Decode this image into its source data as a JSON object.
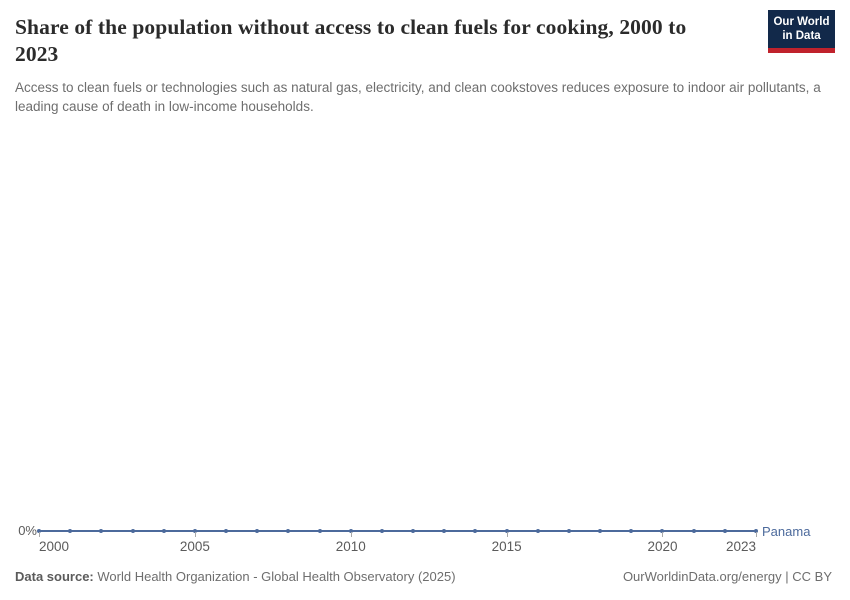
{
  "header": {
    "title": "Share of the population without access to clean fuels for cooking, 2000 to 2023",
    "subtitle": "Access to clean fuels or technologies such as natural gas, electricity, and clean cookstoves reduces exposure to indoor air pollutants, a leading cause of death in low-income households.",
    "logo": {
      "line1": "Our World",
      "line2": "in Data"
    }
  },
  "colors": {
    "line": "#4c6a9c",
    "logo_bg": "#12294a",
    "logo_accent": "#c0222c",
    "axis_text": "#5b5b5b",
    "muted_text": "#6e6e6e"
  },
  "chart_data": {
    "type": "line",
    "title": "Share of the population without access to clean fuels for cooking, 2000 to 2023",
    "xlabel": "",
    "ylabel": "",
    "x_range": [
      2000,
      2023
    ],
    "y_ticks": [
      "0%"
    ],
    "x_ticks": [
      2000,
      2005,
      2010,
      2015,
      2020,
      2023
    ],
    "x_tick_labels": [
      "2000",
      "2005",
      "2010",
      "2015",
      "2020",
      "2023"
    ],
    "grid": false,
    "legend_position": "end-of-line",
    "series": [
      {
        "name": "Panama",
        "color": "#4c6a9c",
        "x": [
          2000,
          2001,
          2002,
          2003,
          2004,
          2005,
          2006,
          2007,
          2008,
          2009,
          2010,
          2011,
          2012,
          2013,
          2014,
          2015,
          2016,
          2017,
          2018,
          2019,
          2020,
          2021,
          2022,
          2023
        ],
        "values": [
          0,
          0,
          0,
          0,
          0,
          0,
          0,
          0,
          0,
          0,
          0,
          0,
          0,
          0,
          0,
          0,
          0,
          0,
          0,
          0,
          0,
          0,
          0,
          0
        ],
        "unit": "%"
      }
    ]
  },
  "footer": {
    "data_source_label": "Data source:",
    "data_source": "World Health Organization - Global Health Observatory (2025)",
    "attribution": "OurWorldinData.org/energy | CC BY"
  }
}
